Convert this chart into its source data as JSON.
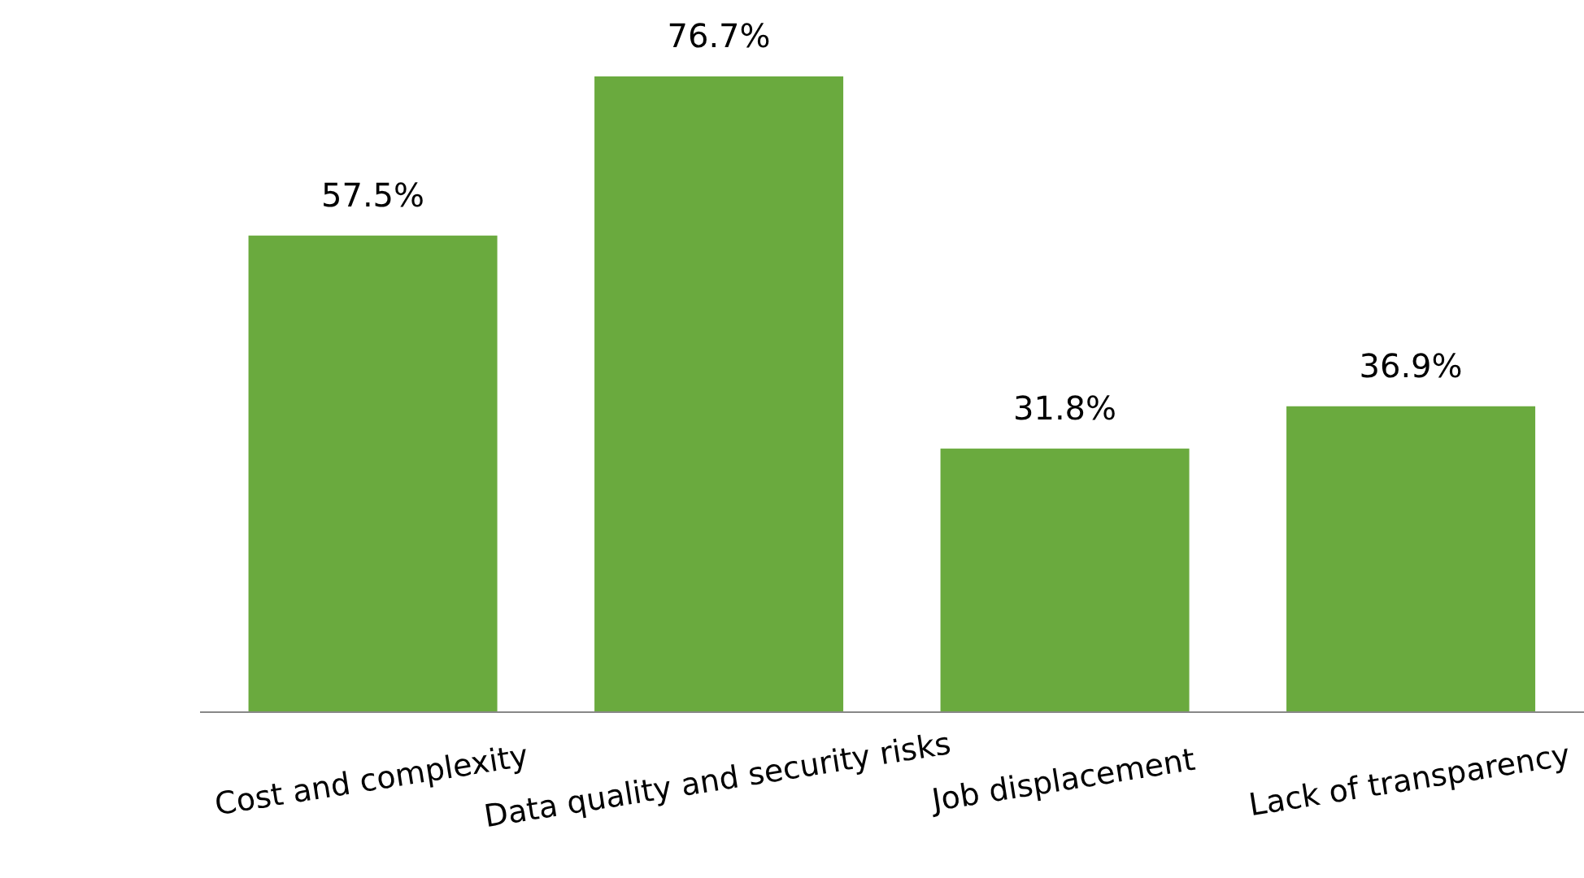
{
  "chart_data": {
    "type": "bar",
    "categories": [
      "Cost and complexity",
      "Data quality and security risks",
      "Job displacement",
      "Lack of transparency"
    ],
    "values": [
      57.5,
      76.7,
      31.8,
      36.9
    ],
    "value_labels": [
      "57.5%",
      "76.7%",
      "31.8%",
      "36.9%"
    ],
    "color": "#6aaa3e",
    "tick_labels": "x"
  }
}
